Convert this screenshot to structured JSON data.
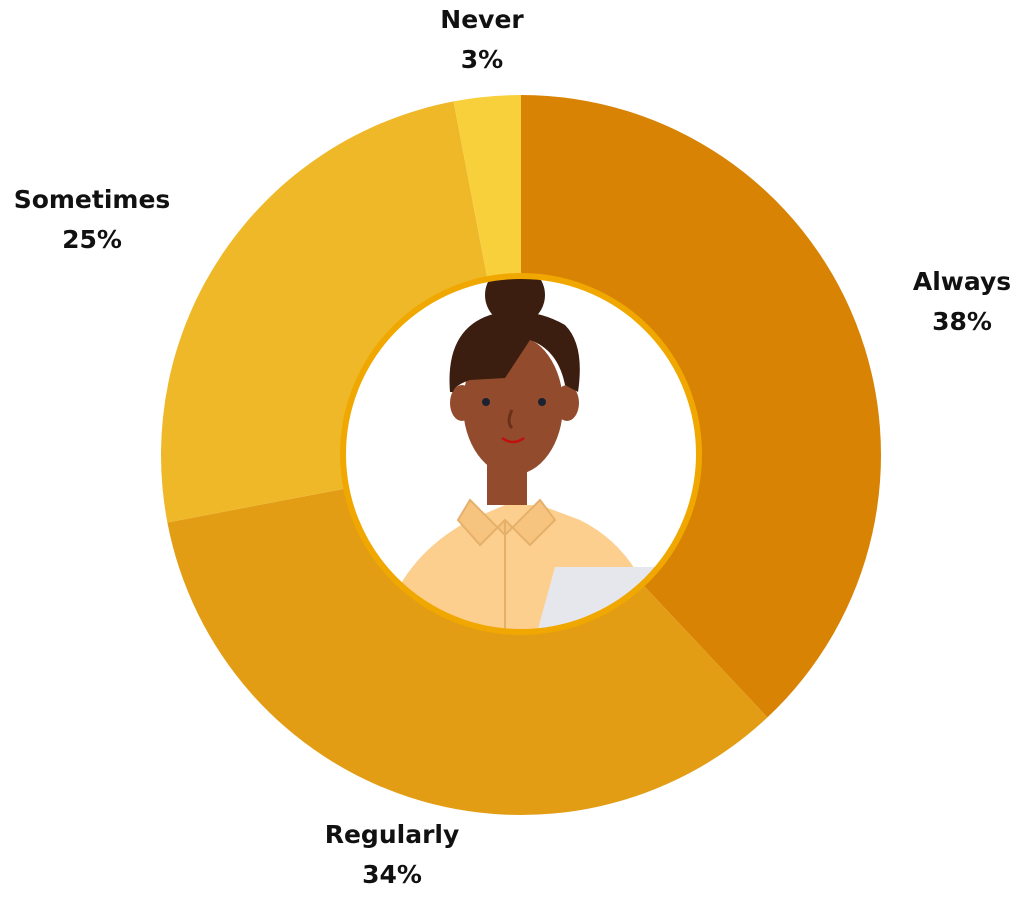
{
  "chart_data": {
    "type": "pie",
    "subtype": "donut",
    "start_angle": "top, clockwise",
    "categories": [
      "Always",
      "Regularly",
      "Sometimes",
      "Never"
    ],
    "values": [
      38,
      34,
      25,
      3
    ],
    "value_labels": [
      "38%",
      "34%",
      "25%",
      "3%"
    ],
    "colors": [
      "#D98305",
      "#E39D14",
      "#EFB828",
      "#F8D03C"
    ],
    "center_image": "illustration of a smiling woman with hair bun and light shirt holding paper",
    "center_ring_color": "#F0A800",
    "legend": "none (labels placed beside slices)"
  }
}
